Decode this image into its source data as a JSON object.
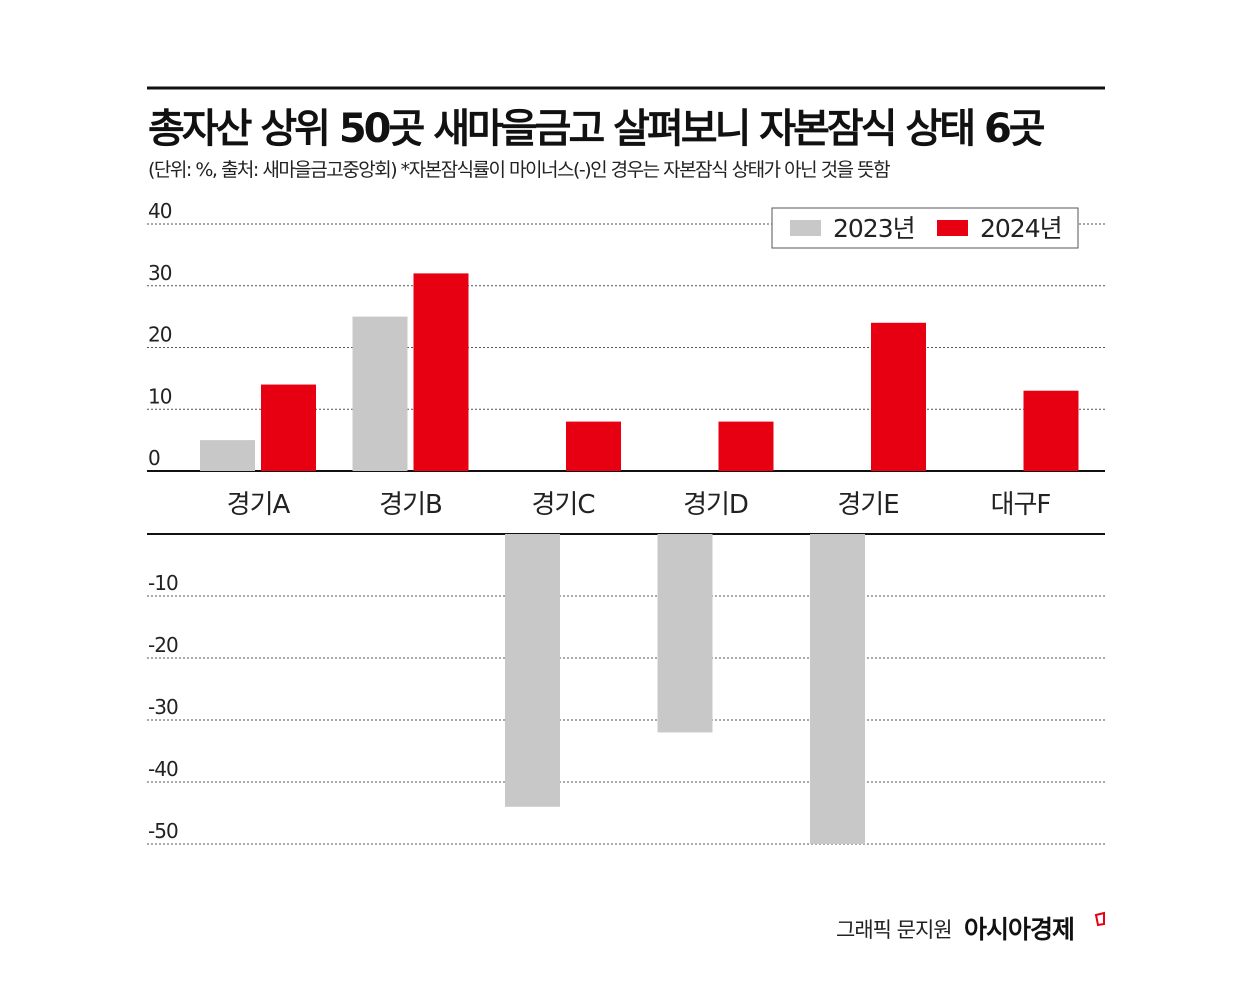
{
  "chart_data": {
    "type": "bar",
    "title": "총자산 상위 50곳 새마을금고 살펴보니 자본잠식 상태 6곳",
    "subtitle": "(단위: %, 출처: 새마을금고중앙회)  *자본잠식률이 마이너스(-)인 경우는 자본잠식 상태가 아닌 것을 뜻함",
    "categories": [
      "경기A",
      "경기B",
      "경기C",
      "경기D",
      "경기E",
      "대구F"
    ],
    "series": [
      {
        "name": "2023년",
        "color": "#c8c8c8",
        "values": [
          5,
          25,
          -44,
          -32,
          -50,
          null
        ]
      },
      {
        "name": "2024년",
        "color": "#e60012",
        "values": [
          14,
          32,
          8,
          8,
          24,
          13
        ]
      }
    ],
    "ylim_positive": [
      0,
      40
    ],
    "ylim_negative": [
      -50,
      0
    ],
    "yticks_positive": [
      "40",
      "30",
      "20",
      "10",
      "0"
    ],
    "yticks_negative": [
      "-10",
      "-20",
      "-30",
      "-40",
      "-50"
    ],
    "grid": true,
    "legend": "top-right",
    "xlabel": "",
    "ylabel": ""
  },
  "footer": {
    "credit": "그래픽 문지원",
    "brand": "아시아경제"
  }
}
